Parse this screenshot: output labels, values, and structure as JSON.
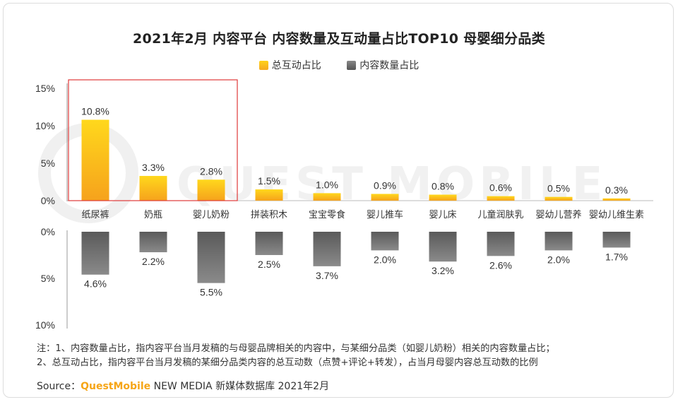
{
  "title": "2021年2月 内容平台 内容数量及互动量占比TOP10 母婴细分品类",
  "legend": {
    "interaction": "总互动占比",
    "content": "内容数量占比"
  },
  "colors": {
    "interaction": "#f8b319",
    "content": "#6e6e6e",
    "highlight_box": "#e03a3a"
  },
  "watermark": "QUEST MOBILE",
  "chart_data": {
    "type": "bar",
    "categories": [
      "纸尿裤",
      "奶瓶",
      "婴儿奶粉",
      "拼装积木",
      "宝宝零食",
      "婴儿推车",
      "婴儿床",
      "儿童润肤乳",
      "婴幼儿营养",
      "婴幼儿维生素"
    ],
    "series": [
      {
        "name": "总互动占比",
        "values": [
          10.8,
          3.3,
          2.8,
          1.5,
          1.0,
          0.9,
          0.8,
          0.6,
          0.5,
          0.3
        ],
        "labels": [
          "10.8%",
          "3.3%",
          "2.8%",
          "1.5%",
          "1.0%",
          "0.9%",
          "0.8%",
          "0.6%",
          "0.5%",
          "0.3%"
        ]
      },
      {
        "name": "内容数量占比",
        "values": [
          4.6,
          2.2,
          5.5,
          2.5,
          3.7,
          2.0,
          3.2,
          2.6,
          2.0,
          1.7
        ],
        "labels": [
          "4.6%",
          "2.2%",
          "5.5%",
          "2.5%",
          "3.7%",
          "2.0%",
          "3.2%",
          "2.6%",
          "2.0%",
          "1.7%"
        ]
      }
    ],
    "top_axis": {
      "ylim": [
        0,
        15
      ],
      "ticks": [
        "0%",
        "5%",
        "10%",
        "15%"
      ]
    },
    "bottom_axis": {
      "ylim": [
        0,
        10
      ],
      "ticks": [
        "0%",
        "5%",
        "10%"
      ],
      "inverted": true
    },
    "highlighted_categories": [
      "纸尿裤",
      "奶瓶",
      "婴儿奶粉"
    ]
  },
  "notes": {
    "line1": "注：1、内容数量占比，指内容平台当月发稿的与母婴品牌相关的内容中，与某细分品类（如婴儿奶粉）相关的内容数量占比；",
    "line2": "2、总互动占比，指内容平台当月发稿的某细分品类内容的总互动数（点赞+评论+转发），占当月母婴内容总互动数的比例"
  },
  "source": {
    "label": "Source：",
    "brand": "QuestMobile",
    "rest": " NEW MEDIA 新媒体数据库 2021年2月"
  }
}
